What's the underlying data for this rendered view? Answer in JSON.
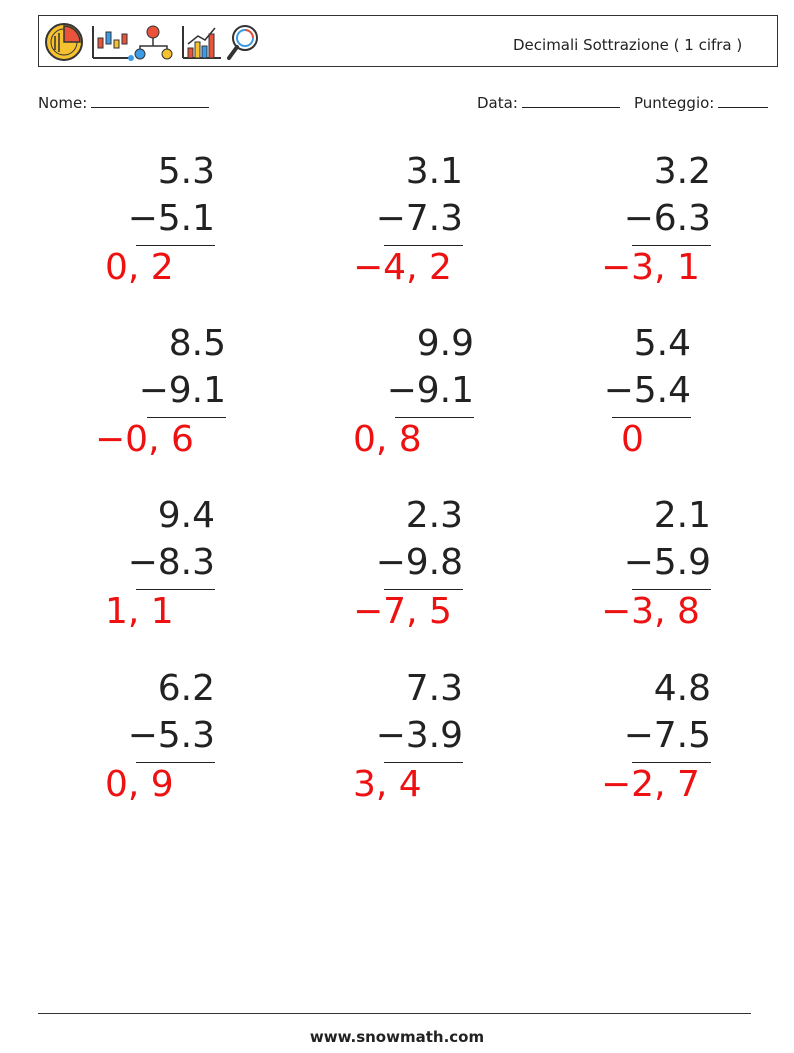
{
  "header": {
    "title": "Decimali Sottrazione ( 1 cifra )",
    "logo_icons": [
      "pie-chart-icon",
      "candlestick-chart-icon",
      "flow-diagram-icon",
      "bar-chart-icon",
      "magnifier-icon"
    ]
  },
  "fields": {
    "name_label": "Nome:",
    "date_label": "Data:",
    "score_label": "Punteggio:"
  },
  "problems": [
    {
      "a": "5.3",
      "b": "−5.1",
      "answer": "0, 2"
    },
    {
      "a": "3.1",
      "b": "−7.3",
      "answer": "−4, 2"
    },
    {
      "a": "3.2",
      "b": "−6.3",
      "answer": "−3, 1"
    },
    {
      "a": "8.5",
      "b": "−9.1",
      "answer": "−0, 6"
    },
    {
      "a": "9.9",
      "b": "−9.1",
      "answer": "0, 8"
    },
    {
      "a": "5.4",
      "b": "−5.4",
      "answer": "0"
    },
    {
      "a": "9.4",
      "b": "−8.3",
      "answer": "1, 1"
    },
    {
      "a": "2.3",
      "b": "−9.8",
      "answer": "−7, 5"
    },
    {
      "a": "2.1",
      "b": "−5.9",
      "answer": "−3, 8"
    },
    {
      "a": "6.2",
      "b": "−5.3",
      "answer": "0, 9"
    },
    {
      "a": "7.3",
      "b": "−3.9",
      "answer": "3, 4"
    },
    {
      "a": "4.8",
      "b": "−7.5",
      "answer": "−2, 7"
    }
  ],
  "colors": {
    "answer": "#ee1111",
    "text": "#222222"
  },
  "footer": {
    "site": "www.snowmath.com"
  }
}
